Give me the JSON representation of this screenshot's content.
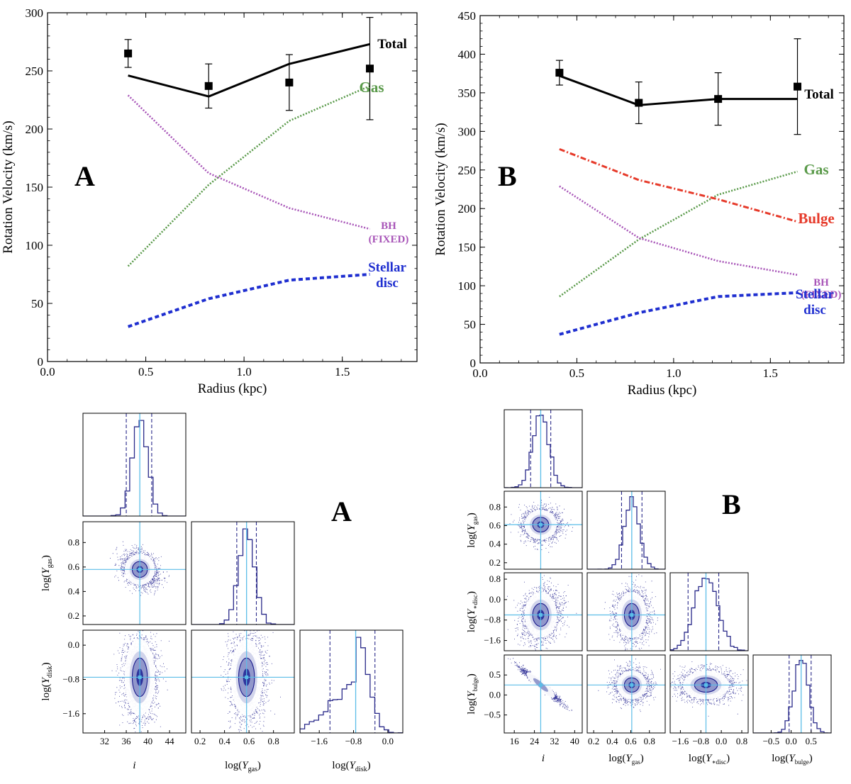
{
  "colors": {
    "total": "#000000",
    "gas": "#5a9a4a",
    "bh": "#a855b8",
    "stellar": "#1f2fd0",
    "bulge": "#e63a2a",
    "corner_dark": "#1a1a8c",
    "corner_line": "#2a2a8a",
    "truth": "#5bbde8"
  },
  "chart_data": [
    {
      "id": "A",
      "type": "line",
      "panel_label": "A",
      "xlabel": "Radius (kpc)",
      "ylabel": "Rotation Velocity (km/s)",
      "xlim": [
        0.0,
        1.88
      ],
      "ylim": [
        0,
        300
      ],
      "xticks": [
        0.0,
        0.5,
        1.0,
        1.5
      ],
      "xtick_labels": [
        "0.0",
        "0.5",
        "1.0",
        "1.5"
      ],
      "yticks": [
        0,
        50,
        100,
        150,
        200,
        250,
        300
      ],
      "ytick_labels": [
        "0",
        "50",
        "100",
        "150",
        "200",
        "250",
        "300"
      ],
      "observed": {
        "x": [
          0.41,
          0.82,
          1.23,
          1.64
        ],
        "y": [
          265,
          237,
          240,
          252
        ],
        "err": [
          12,
          19,
          24,
          44
        ]
      },
      "series": [
        {
          "name": "Total",
          "style": "solid",
          "color_key": "total",
          "x": [
            0.41,
            0.82,
            1.23,
            1.64
          ],
          "y": [
            246,
            228,
            256,
            273
          ]
        },
        {
          "name": "Gas",
          "style": "dotted",
          "color_key": "gas",
          "x": [
            0.41,
            0.82,
            1.23,
            1.64
          ],
          "y": [
            82,
            152,
            207,
            237
          ]
        },
        {
          "name": "BH (FIXED)",
          "style": "dotted",
          "color_key": "bh",
          "x": [
            0.41,
            0.82,
            1.23,
            1.64
          ],
          "y": [
            229,
            162,
            132,
            114
          ]
        },
        {
          "name": "Stellar disc",
          "style": "dashed",
          "color_key": "stellar",
          "x": [
            0.41,
            0.82,
            1.23,
            1.64
          ],
          "y": [
            30,
            54,
            70,
            75
          ]
        }
      ],
      "labels": [
        {
          "lines": [
            "Total"
          ],
          "color_key": "total",
          "size": 19
        },
        {
          "lines": [
            "Gas"
          ],
          "color_key": "gas",
          "size": 21
        },
        {
          "lines": [
            "BH",
            "(FIXED)"
          ],
          "color_key": "bh",
          "size": 15
        },
        {
          "lines": [
            "Stellar",
            "disc"
          ],
          "color_key": "stellar",
          "size": 19
        }
      ]
    },
    {
      "id": "B",
      "type": "line",
      "panel_label": "B",
      "xlabel": "Radius (kpc)",
      "ylabel": "Rotation Velocity (km/s)",
      "xlim": [
        0.0,
        1.88
      ],
      "ylim": [
        0,
        450
      ],
      "xticks": [
        0.0,
        0.5,
        1.0,
        1.5
      ],
      "xtick_labels": [
        "0.0",
        "0.5",
        "1.0",
        "1.5"
      ],
      "yticks": [
        0,
        50,
        100,
        150,
        200,
        250,
        300,
        350,
        400,
        450
      ],
      "ytick_labels": [
        "0",
        "50",
        "100",
        "150",
        "200",
        "250",
        "300",
        "350",
        "400",
        "450"
      ],
      "observed": {
        "x": [
          0.41,
          0.82,
          1.23,
          1.64
        ],
        "y": [
          376,
          337,
          342,
          358
        ],
        "err": [
          16,
          27,
          34,
          62
        ]
      },
      "series": [
        {
          "name": "Total",
          "style": "solid",
          "color_key": "total",
          "x": [
            0.41,
            0.82,
            1.23,
            1.64
          ],
          "y": [
            372,
            334,
            342,
            342
          ]
        },
        {
          "name": "Gas",
          "style": "dotted",
          "color_key": "gas",
          "x": [
            0.41,
            0.82,
            1.23,
            1.64
          ],
          "y": [
            86,
            160,
            218,
            248
          ]
        },
        {
          "name": "Bulge",
          "style": "dashdot",
          "color_key": "bulge",
          "x": [
            0.41,
            0.82,
            1.23,
            1.64
          ],
          "y": [
            277,
            237,
            212,
            183
          ]
        },
        {
          "name": "BH (FIXED)",
          "style": "dotted",
          "color_key": "bh",
          "x": [
            0.41,
            0.82,
            1.23,
            1.64
          ],
          "y": [
            229,
            162,
            132,
            114
          ]
        },
        {
          "name": "Stellar disc",
          "style": "dashed",
          "color_key": "stellar",
          "x": [
            0.41,
            0.82,
            1.23,
            1.64
          ],
          "y": [
            37,
            65,
            86,
            91
          ]
        }
      ],
      "labels": [
        {
          "lines": [
            "Total"
          ],
          "color_key": "total",
          "size": 19
        },
        {
          "lines": [
            "Gas"
          ],
          "color_key": "gas",
          "size": 21
        },
        {
          "lines": [
            "Bulge"
          ],
          "color_key": "bulge",
          "size": 21
        },
        {
          "lines": [
            "BH",
            "(FIXED)"
          ],
          "color_key": "bh",
          "size": 15
        },
        {
          "lines": [
            "Stellar",
            "disc"
          ],
          "color_key": "stellar",
          "size": 19
        }
      ]
    },
    {
      "id": "cornerA",
      "type": "corner",
      "panel_label": "A",
      "params": [
        {
          "label_html": "<tspan font-style='italic'>i</tspan>",
          "range": [
            28,
            47
          ],
          "ticks": [
            32,
            36,
            40,
            44
          ],
          "tick_labels": [
            "32",
            "36",
            "40",
            "44"
          ],
          "truth": 38.5,
          "q16": 36.0,
          "q84": 40.7,
          "sd": 1.4
        },
        {
          "label_html": "log(<tspan font-style='italic'>Y</tspan><tspan font-size='10' dy='4'>gas</tspan><tspan dy='-4'>)</tspan>",
          "range": [
            0.13,
            0.97
          ],
          "ticks": [
            0.2,
            0.4,
            0.6,
            0.8
          ],
          "tick_labels": [
            "0.2",
            "0.4",
            "0.6",
            "0.8"
          ],
          "truth": 0.58,
          "q16": 0.5,
          "q84": 0.66,
          "sd": 0.065
        },
        {
          "label_html": "log(<tspan font-style='italic'>Y</tspan><tspan font-size='10' dy='4'>disk</tspan><tspan dy='-4'>)</tspan>",
          "range": [
            -2.05,
            0.35
          ],
          "ticks": [
            -1.6,
            -0.8,
            0.0
          ],
          "tick_labels": [
            "−1.6",
            "−0.8",
            "0.0"
          ],
          "truth": -0.75,
          "q16": -1.35,
          "q84": -0.3,
          "sd": 0.45
        }
      ]
    },
    {
      "id": "cornerB",
      "type": "corner",
      "panel_label": "B",
      "params": [
        {
          "label_html": "<tspan font-style='italic'>i</tspan>",
          "range": [
            12,
            43
          ],
          "ticks": [
            16,
            24,
            32,
            40
          ],
          "tick_labels": [
            "16",
            "24",
            "32",
            "40"
          ],
          "truth": 26.5,
          "q16": 22.5,
          "q84": 30.5,
          "sd": 3.2
        },
        {
          "label_html": "log(<tspan font-style='italic'>Y</tspan><tspan font-size='9' dy='4'>gas</tspan><tspan dy='-4'>)</tspan>",
          "range": [
            0.13,
            0.97
          ],
          "ticks": [
            0.2,
            0.4,
            0.6,
            0.8
          ],
          "tick_labels": [
            "0.2",
            "0.4",
            "0.6",
            "0.8"
          ],
          "truth": 0.61,
          "q16": 0.5,
          "q84": 0.72,
          "sd": 0.08
        },
        {
          "label_html": "log(<tspan font-style='italic'>Y</tspan><tspan font-size='9' dy='4'>∗disc</tspan><tspan dy='-4'>)</tspan>",
          "range": [
            -2.0,
            1.05
          ],
          "ticks": [
            -1.6,
            -0.8,
            0.0,
            0.8
          ],
          "tick_labels": [
            "−1.6",
            "−0.8",
            "0.0",
            "0.8"
          ],
          "truth": -0.6,
          "q16": -1.3,
          "q84": -0.1,
          "sd": 0.45
        },
        {
          "label_html": "log(<tspan font-style='italic'>Y</tspan><tspan font-size='9' dy='4'>bulge</tspan><tspan dy='-4'>)</tspan>",
          "range": [
            -0.95,
            1.0
          ],
          "ticks": [
            -0.5,
            0.0,
            0.5
          ],
          "tick_labels": [
            "−0.5",
            "0.0",
            "0.5"
          ],
          "truth": 0.25,
          "q16": -0.05,
          "q84": 0.5,
          "sd": 0.18
        }
      ]
    }
  ]
}
